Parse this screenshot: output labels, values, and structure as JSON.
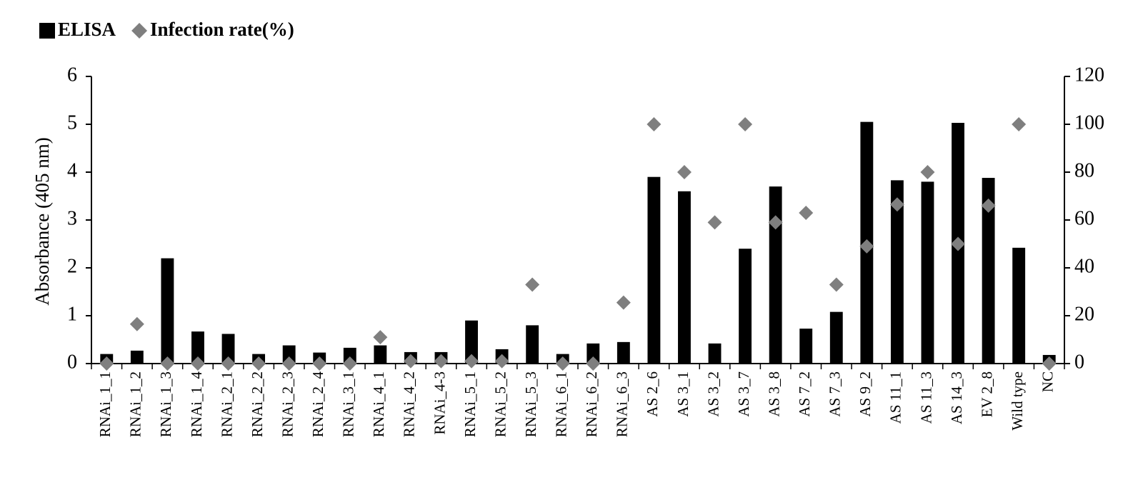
{
  "chart_data": {
    "type": "bar",
    "y_label": "Absorbance (405 nm)",
    "categories": [
      "RNAi_1_1",
      "RNAi_1_2",
      "RNAi_1_3",
      "RNAi_1_4",
      "RNAi_2_1",
      "RNAi_2_2",
      "RNAi_2_3",
      "RNAi_2_4",
      "RNAi_3_1",
      "RNAi_4_1",
      "RNAi_4_2",
      "RNAi_4-3",
      "RNAi_5_1",
      "RNAi_5_2",
      "RNAi_5_3",
      "RNAi_6_1",
      "RNAi_6_2",
      "RNAi_6_3",
      "AS 2_6",
      "AS 3_1",
      "AS 3_2",
      "AS 3_7",
      "AS 3_8",
      "AS 7_2",
      "AS 7_3",
      "AS 9_2",
      "AS 11_1",
      "AS 11_3",
      "AS 14_3",
      "EV 2_8",
      "Wild type",
      "NC"
    ],
    "series": [
      {
        "name": "ELISA",
        "type": "bar",
        "color": "#000000",
        "values": [
          0.2,
          0.27,
          2.2,
          0.67,
          0.62,
          0.2,
          0.38,
          0.23,
          0.33,
          0.38,
          0.24,
          0.24,
          0.9,
          0.3,
          0.8,
          0.2,
          0.42,
          0.45,
          3.9,
          3.6,
          0.42,
          2.4,
          3.7,
          0.73,
          1.08,
          5.05,
          3.83,
          3.8,
          5.03,
          3.88,
          2.42,
          0.18
        ]
      },
      {
        "name": "Infection rate(%)",
        "type": "scatter",
        "axis": "y2",
        "color": "#7f7f7f",
        "values": [
          0,
          16.5,
          0,
          0,
          0,
          0,
          0,
          0,
          0,
          11,
          1,
          1,
          1,
          1,
          33,
          0,
          0,
          25.5,
          100,
          80,
          59,
          100,
          59,
          63,
          33,
          49,
          66.5,
          80,
          50,
          66,
          100,
          0
        ]
      }
    ],
    "ylim": [
      0,
      6
    ],
    "yticks": [
      0,
      1,
      2,
      3,
      4,
      5,
      6
    ],
    "y2lim": [
      0,
      120
    ],
    "y2ticks": [
      0,
      20,
      40,
      60,
      80,
      100,
      120
    ],
    "legend": "top-left"
  }
}
